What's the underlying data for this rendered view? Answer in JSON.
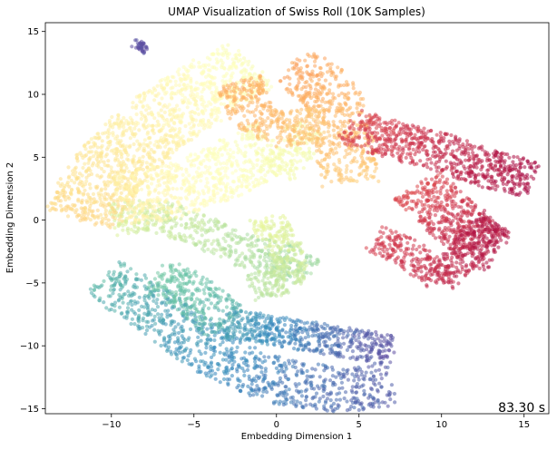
{
  "chart_data": {
    "type": "scatter",
    "title": "UMAP Visualization of Swiss Roll (10K Samples)",
    "xlabel": "Embedding Dimension 1",
    "ylabel": "Embedding Dimension 2",
    "xlim": [
      -14,
      16.5
    ],
    "ylim": [
      -15.4,
      15.7
    ],
    "xticks": [
      -10,
      -5,
      0,
      5,
      10,
      15
    ],
    "yticks": [
      -15,
      -10,
      -5,
      0,
      5,
      10,
      15
    ],
    "grid": false,
    "legend": "none",
    "colormap": "Spectral",
    "point_alpha": 0.55,
    "annotation": "83.30 s",
    "series": [
      {
        "regions": [
          {
            "kind": "strip",
            "points": [
              [
                -8.6,
                14.1
              ],
              [
                -7.9,
                13.6
              ]
            ],
            "width": 0.35,
            "t": [
              1.0,
              1.0
            ],
            "count": 40
          },
          {
            "kind": "strip",
            "points": [
              [
                -10.5,
                -4.6
              ],
              [
                -7,
                -7.5
              ],
              [
                -4,
                -10.5
              ],
              [
                0,
                -12.8
              ],
              [
                4,
                -13.5
              ],
              [
                7,
                -13.0
              ]
            ],
            "width": 1.8,
            "t": [
              0.82,
              0.98
            ],
            "count": 900
          },
          {
            "kind": "strip",
            "points": [
              [
                -7.2,
                -4.4
              ],
              [
                -5.5,
                -5.5
              ],
              [
                -4.5,
                -6.5
              ],
              [
                -3,
                -8.3
              ]
            ],
            "width": 1.6,
            "t": [
              0.78,
              0.83
            ],
            "count": 280
          },
          {
            "kind": "strip",
            "points": [
              [
                -3,
                -8.2
              ],
              [
                0,
                -8.8
              ],
              [
                3,
                -9.5
              ],
              [
                7,
                -10.3
              ]
            ],
            "width": 1.2,
            "t": [
              0.86,
              1.0
            ],
            "count": 520
          },
          {
            "kind": "strip",
            "points": [
              [
                -10,
                0
              ],
              [
                -7.5,
                0.4
              ],
              [
                -5,
                -0.6
              ],
              [
                -2,
                -2.4
              ],
              [
                1,
                -3.3
              ],
              [
                1.8,
                -4.3
              ]
            ],
            "width": 1.3,
            "t": [
              0.62,
              0.72
            ],
            "count": 500
          },
          {
            "kind": "strip",
            "points": [
              [
                -0.5,
                0.1
              ],
              [
                0,
                -1.5
              ],
              [
                1,
                -3
              ],
              [
                0.5,
                -4.8
              ],
              [
                -1.5,
                -5.3
              ]
            ],
            "width": 1.1,
            "t": [
              0.6,
              0.68
            ],
            "count": 350
          },
          {
            "kind": "strip",
            "points": [
              [
                -11.8,
                0
              ],
              [
                -10.5,
                3.5
              ],
              [
                -7.5,
                7.5
              ],
              [
                -4,
                10.5
              ],
              [
                -1.5,
                12.4
              ]
            ],
            "width": 2.4,
            "t": [
              0.38,
              0.52
            ],
            "count": 1200
          },
          {
            "kind": "strip",
            "points": [
              [
                -9.5,
                1.5
              ],
              [
                -6,
                2.5
              ],
              [
                -3,
                4
              ],
              [
                0,
                6
              ],
              [
                2,
                5
              ]
            ],
            "width": 2.2,
            "t": [
              0.45,
              0.55
            ],
            "count": 800
          },
          {
            "kind": "strip",
            "points": [
              [
                1,
                12.3
              ],
              [
                3,
                10.5
              ],
              [
                4,
                8
              ],
              [
                4.4,
                3
              ]
            ],
            "width": 1.8,
            "t": [
              0.28,
              0.36
            ],
            "count": 500
          },
          {
            "kind": "strip",
            "points": [
              [
                -2.3,
                11
              ],
              [
                -1.5,
                8.5
              ],
              [
                0,
                7.2
              ],
              [
                3,
                7.6
              ]
            ],
            "width": 1.4,
            "t": [
              0.3,
              0.35
            ],
            "count": 380
          },
          {
            "kind": "strip",
            "points": [
              [
                4.3,
                7.5
              ],
              [
                7,
                6.4
              ],
              [
                10,
                5.4
              ],
              [
                13,
                4
              ],
              [
                15.5,
                3.3
              ]
            ],
            "width": 1.5,
            "t": [
              0.12,
              0.02
            ],
            "count": 700
          },
          {
            "kind": "strip",
            "points": [
              [
                8.5,
                2.7
              ],
              [
                10,
                1
              ],
              [
                11.5,
                -1
              ],
              [
                12.5,
                -2
              ],
              [
                13.5,
                -2.5
              ]
            ],
            "width": 1.8,
            "t": [
              0.12,
              0.04
            ],
            "count": 520
          },
          {
            "kind": "strip",
            "points": [
              [
                6,
                -1.5
              ],
              [
                8,
                -2.6
              ],
              [
                10,
                -4.8
              ],
              [
                11.5,
                -2.5
              ],
              [
                13.4,
                0
              ]
            ],
            "width": 1.1,
            "t": [
              0.1,
              0.03
            ],
            "count": 420
          }
        ]
      }
    ]
  }
}
